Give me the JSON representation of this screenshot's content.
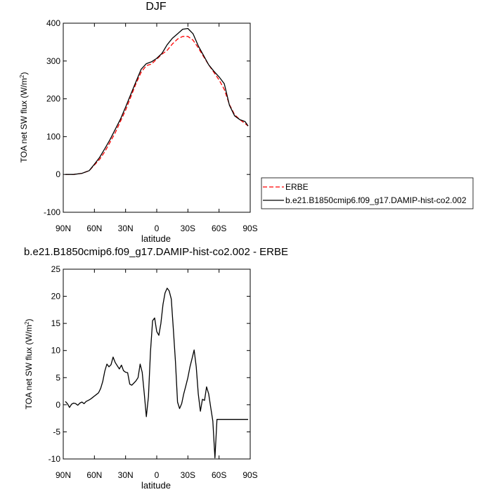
{
  "chart_data": [
    {
      "type": "line",
      "title": "DJF",
      "xlabel": "latitude",
      "ylabel": "TOA net SW flux (W/m",
      "ylabel_sup": "2",
      "ylabel_close": ")",
      "xlim": [
        90,
        -90
      ],
      "ylim": [
        -100,
        400
      ],
      "xticks": [
        90,
        60,
        30,
        0,
        -30,
        -60,
        -90
      ],
      "xtick_labels": [
        "90N",
        "60N",
        "30N",
        "0",
        "30S",
        "60S",
        "90S"
      ],
      "yticks": [
        400,
        300,
        200,
        100,
        0,
        -100
      ],
      "ytick_labels": [
        "400",
        "300",
        "200",
        "100",
        "0",
        "-100"
      ],
      "legend_position": "outside-right",
      "series": [
        {
          "name": "ERBE",
          "color": "#ff0000",
          "dashed": true,
          "x": [
            88,
            80,
            72,
            65,
            60,
            55,
            50,
            45,
            40,
            35,
            30,
            25,
            20,
            15,
            10,
            5,
            0,
            -5,
            -10,
            -15,
            -20,
            -25,
            -30,
            -35,
            -40,
            -45,
            -50,
            -55,
            -60,
            -65,
            -70,
            -75,
            -80,
            -85,
            -88
          ],
          "y": [
            0,
            0,
            3,
            10,
            25,
            40,
            60,
            85,
            110,
            140,
            170,
            205,
            240,
            270,
            288,
            292,
            305,
            318,
            328,
            345,
            358,
            365,
            365,
            355,
            335,
            312,
            290,
            270,
            250,
            225,
            185,
            158,
            145,
            135,
            128
          ]
        },
        {
          "name": "b.e21.B1850cmip6.f09_g17.DAMIP-hist-co2.002",
          "color": "#000000",
          "dashed": false,
          "x": [
            88,
            80,
            72,
            65,
            60,
            55,
            50,
            45,
            40,
            35,
            30,
            25,
            20,
            15,
            10,
            5,
            0,
            -5,
            -10,
            -15,
            -20,
            -25,
            -30,
            -35,
            -40,
            -45,
            -50,
            -55,
            -60,
            -65,
            -70,
            -75,
            -80,
            -85,
            -88
          ],
          "y": [
            0,
            0,
            3,
            10,
            27,
            45,
            68,
            92,
            119,
            146,
            178,
            212,
            245,
            278,
            293,
            298,
            307,
            320,
            343,
            360,
            372,
            384,
            386,
            372,
            340,
            315,
            290,
            273,
            258,
            240,
            183,
            155,
            145,
            140,
            128
          ]
        }
      ]
    },
    {
      "type": "line",
      "title": "b.e21.B1850cmip6.f09_g17.DAMIP-hist-co2.002 - ERBE",
      "xlabel": "latitude",
      "ylabel": "TOA net SW flux (W/m",
      "ylabel_sup": "2",
      "ylabel_close": ")",
      "xlim": [
        90,
        -90
      ],
      "ylim": [
        -10,
        25
      ],
      "xticks": [
        90,
        60,
        30,
        0,
        -30,
        -60,
        -90
      ],
      "xtick_labels": [
        "90N",
        "60N",
        "30N",
        "0",
        "30S",
        "60S",
        "90S"
      ],
      "yticks": [
        25,
        20,
        15,
        10,
        5,
        0,
        -5,
        -10
      ],
      "ytick_labels": [
        "25",
        "20",
        "15",
        "10",
        "5",
        "0",
        "-5",
        "-10"
      ],
      "series": [
        {
          "color": "#000000",
          "dashed": false,
          "x": [
            88,
            86,
            84,
            82,
            80,
            78,
            76,
            74,
            72,
            70,
            68,
            66,
            64,
            62,
            60,
            58,
            56,
            54,
            52,
            50,
            48,
            46,
            44,
            42,
            40,
            38,
            36,
            34,
            32,
            30,
            28,
            26,
            24,
            22,
            20,
            18,
            16,
            14,
            12,
            10,
            8,
            6,
            4,
            2,
            0,
            -2,
            -4,
            -6,
            -8,
            -10,
            -12,
            -14,
            -16,
            -18,
            -20,
            -22,
            -24,
            -26,
            -28,
            -30,
            -32,
            -34,
            -36,
            -38,
            -40,
            -42,
            -44,
            -46,
            -48,
            -50,
            -52,
            -54,
            -56,
            -58,
            -60,
            -62,
            -64,
            -66,
            -68,
            -70,
            -72,
            -74,
            -76,
            -78,
            -80,
            -82,
            -84,
            -86,
            -88
          ],
          "y": [
            0.6,
            0.2,
            -0.5,
            0.1,
            0.3,
            0.2,
            -0.1,
            0.3,
            0.5,
            0.2,
            0.6,
            0.8,
            1.0,
            1.3,
            1.6,
            1.9,
            2.2,
            3.0,
            4.3,
            6.2,
            7.5,
            7.0,
            7.4,
            8.8,
            7.8,
            7.2,
            6.6,
            7.3,
            6.3,
            6.0,
            5.9,
            3.8,
            3.6,
            4.0,
            4.4,
            5.0,
            7.5,
            6.0,
            2.0,
            -2.2,
            1.5,
            9.8,
            15.5,
            16.0,
            13.5,
            12.8,
            15.0,
            18.5,
            20.6,
            21.5,
            21.0,
            19.5,
            14.0,
            8.0,
            0.5,
            -0.7,
            0.2,
            2.0,
            3.5,
            5.0,
            7.0,
            8.5,
            10.1,
            7.0,
            2.0,
            -1.2,
            1.0,
            0.8,
            3.3,
            2.0,
            -0.5,
            -3.0,
            -9.8,
            -2.7,
            -2.7,
            -2.7,
            -2.7,
            -2.7,
            -2.7,
            -2.7,
            -2.7,
            -2.7,
            -2.7,
            -2.7,
            -2.7,
            -2.7,
            -2.7,
            -2.7,
            -2.7
          ]
        }
      ]
    }
  ]
}
